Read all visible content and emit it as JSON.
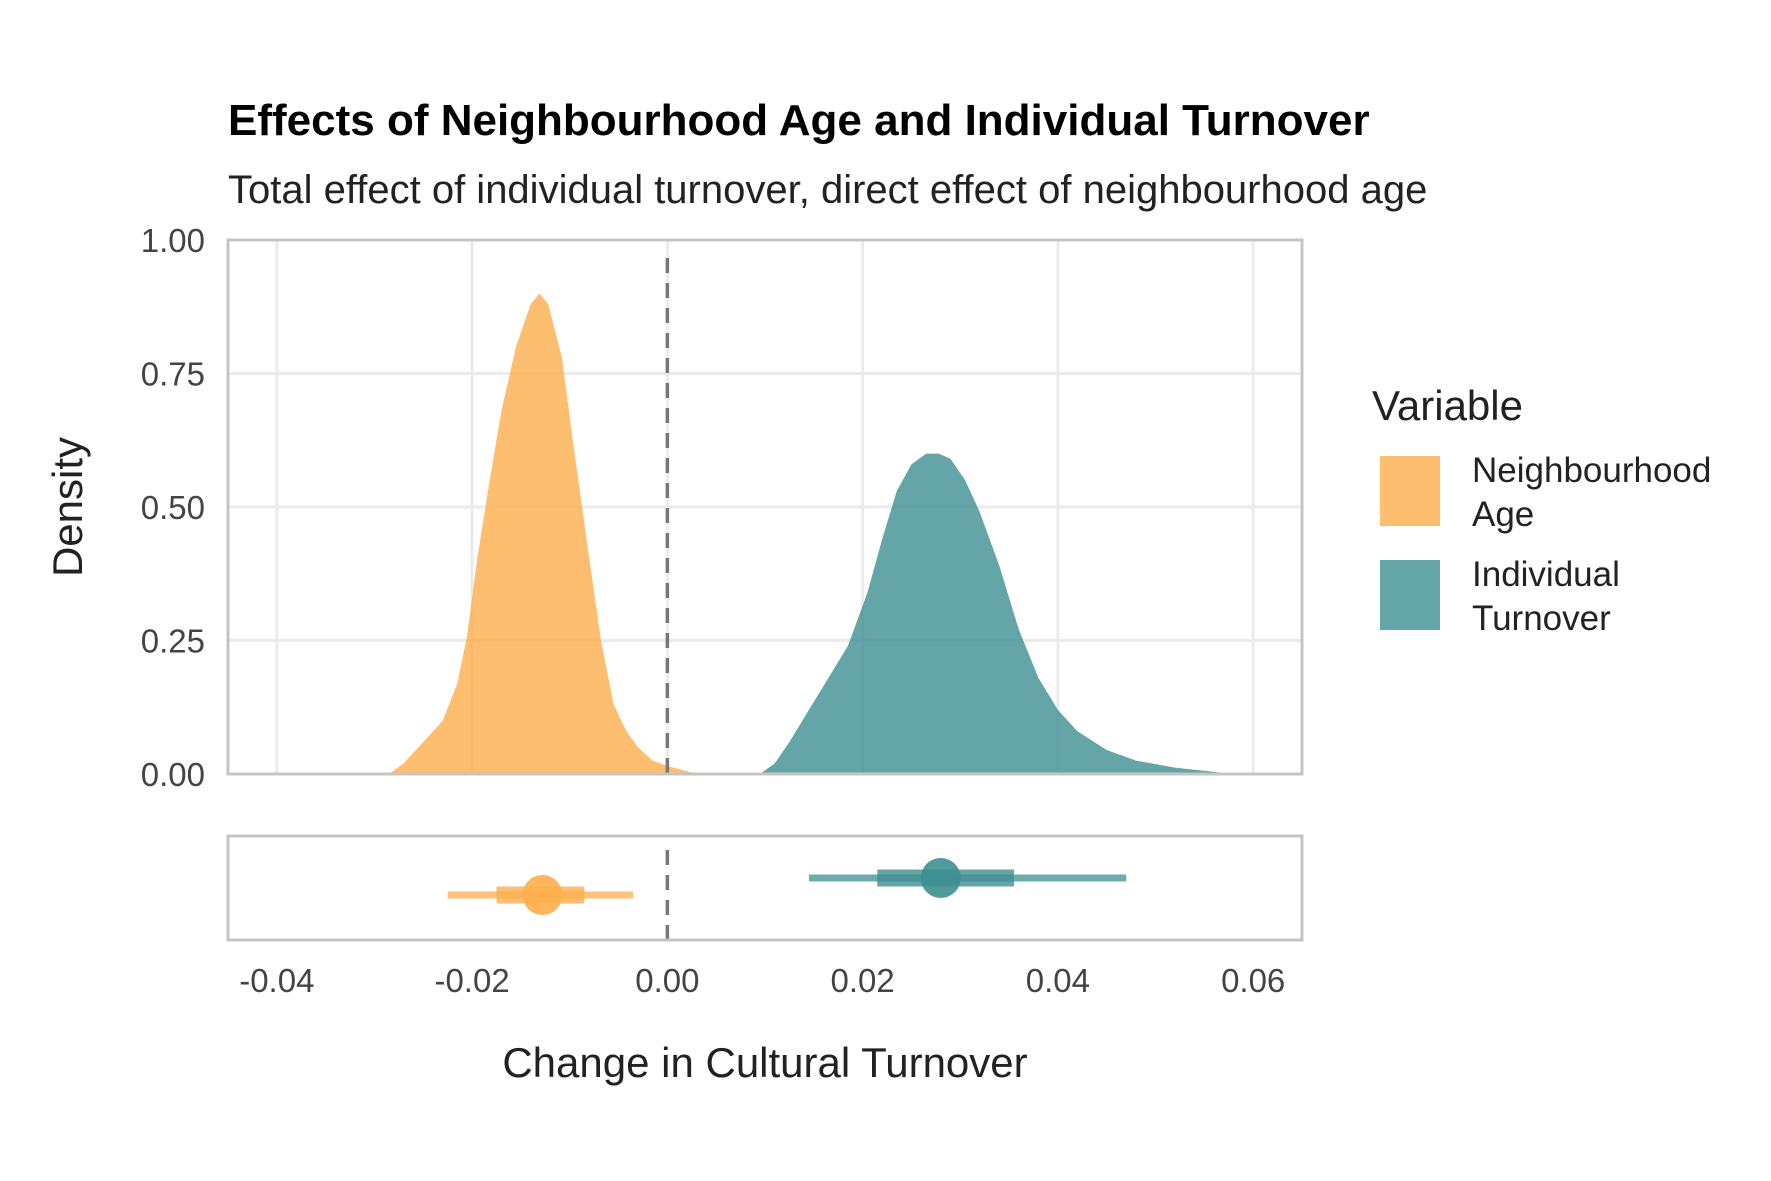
{
  "chart_data": {
    "type": "area",
    "title": "Effects of Neighbourhood Age and Individual Turnover",
    "subtitle": "Total effect of individual turnover, direct effect of neighbourhood age",
    "xlabel": "Change in Cultural Turnover",
    "ylabel": "Density",
    "xlim": [
      -0.045,
      0.065
    ],
    "ylim": [
      0,
      1
    ],
    "x_ticks": [
      "-0.04",
      "-0.02",
      "0.00",
      "0.02",
      "0.04",
      "0.06"
    ],
    "x_tick_values": [
      -0.04,
      -0.02,
      0.0,
      0.02,
      0.04,
      0.06
    ],
    "y_ticks": [
      "0.00",
      "0.25",
      "0.50",
      "0.75",
      "1.00"
    ],
    "y_tick_values": [
      0,
      0.25,
      0.5,
      0.75,
      1.0
    ],
    "reference_line_x": 0,
    "grid": true,
    "legend": {
      "title": "Variable",
      "placement": "right",
      "entries": [
        "Neighbourhood\nAge",
        "Individual\nTurnover"
      ]
    },
    "series": [
      {
        "name": "Neighbourhood Age",
        "color": "#fdae4b",
        "density": [
          [
            -0.0285,
            0.0
          ],
          [
            -0.027,
            0.02
          ],
          [
            -0.025,
            0.06
          ],
          [
            -0.023,
            0.1
          ],
          [
            -0.0215,
            0.17
          ],
          [
            -0.0205,
            0.26
          ],
          [
            -0.0195,
            0.4
          ],
          [
            -0.0182,
            0.55
          ],
          [
            -0.017,
            0.68
          ],
          [
            -0.0155,
            0.8
          ],
          [
            -0.014,
            0.88
          ],
          [
            -0.0131,
            0.9
          ],
          [
            -0.0122,
            0.88
          ],
          [
            -0.0108,
            0.78
          ],
          [
            -0.0095,
            0.6
          ],
          [
            -0.0082,
            0.43
          ],
          [
            -0.0068,
            0.25
          ],
          [
            -0.0055,
            0.13
          ],
          [
            -0.0042,
            0.08
          ],
          [
            -0.003,
            0.05
          ],
          [
            -0.0015,
            0.025
          ],
          [
            0.0,
            0.015
          ],
          [
            0.0015,
            0.008
          ],
          [
            0.003,
            0.0
          ]
        ],
        "interval": {
          "point": -0.0128,
          "inner": [
            -0.0175,
            -0.0085
          ],
          "outer": [
            -0.0225,
            -0.0035
          ]
        }
      },
      {
        "name": "Individual Turnover",
        "color": "#3d8f91",
        "density": [
          [
            0.0095,
            0.0
          ],
          [
            0.011,
            0.02
          ],
          [
            0.0125,
            0.06
          ],
          [
            0.0145,
            0.12
          ],
          [
            0.0165,
            0.18
          ],
          [
            0.0185,
            0.24
          ],
          [
            0.0205,
            0.34
          ],
          [
            0.022,
            0.44
          ],
          [
            0.0235,
            0.53
          ],
          [
            0.025,
            0.58
          ],
          [
            0.0265,
            0.6
          ],
          [
            0.0278,
            0.6
          ],
          [
            0.029,
            0.59
          ],
          [
            0.0305,
            0.55
          ],
          [
            0.032,
            0.49
          ],
          [
            0.034,
            0.39
          ],
          [
            0.036,
            0.27
          ],
          [
            0.038,
            0.18
          ],
          [
            0.04,
            0.12
          ],
          [
            0.042,
            0.08
          ],
          [
            0.045,
            0.045
          ],
          [
            0.048,
            0.025
          ],
          [
            0.052,
            0.012
          ],
          [
            0.056,
            0.004
          ],
          [
            0.058,
            0.0
          ]
        ],
        "interval": {
          "point": 0.028,
          "inner": [
            0.0215,
            0.0355
          ],
          "outer": [
            0.0145,
            0.047
          ]
        }
      }
    ]
  }
}
